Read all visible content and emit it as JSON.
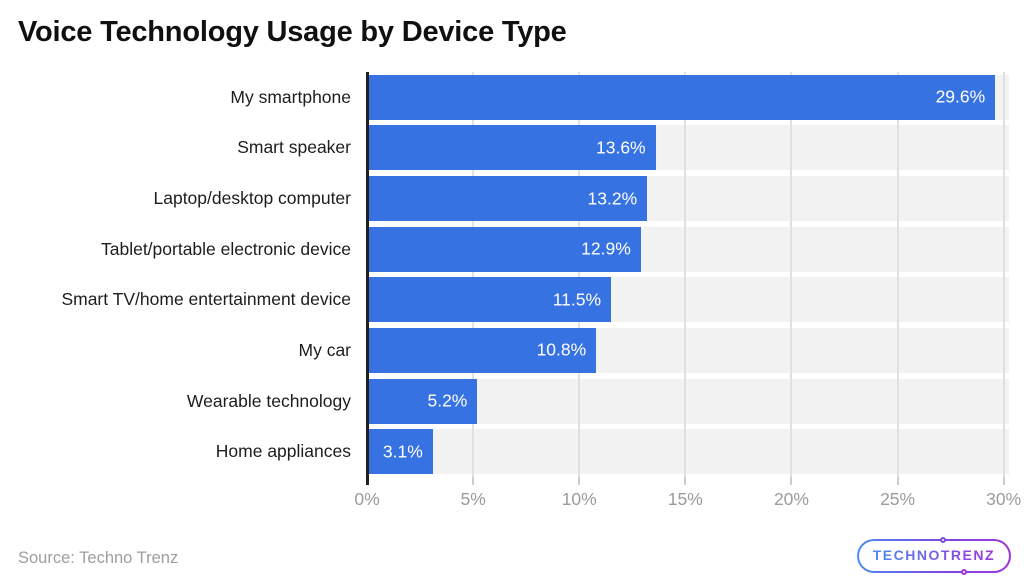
{
  "chart_data": {
    "type": "bar",
    "orientation": "horizontal",
    "title": "Voice Technology Usage by Device Type",
    "categories": [
      "My smartphone",
      "Smart speaker",
      "Laptop/desktop computer",
      "Tablet/portable electronic device",
      "Smart TV/home entertainment device",
      "My car",
      "Wearable technology",
      "Home appliances"
    ],
    "values": [
      29.6,
      13.6,
      13.2,
      12.9,
      11.5,
      10.8,
      5.2,
      3.1
    ],
    "value_labels": [
      "29.6%",
      "13.6%",
      "13.2%",
      "12.9%",
      "11.5%",
      "10.8%",
      "5.2%",
      "3.1%"
    ],
    "xlabel": "",
    "ylabel": "",
    "xlim": [
      0,
      30.25
    ],
    "tick_values": [
      0,
      5,
      10,
      15,
      20,
      25,
      30
    ],
    "tick_labels": [
      "0%",
      "5%",
      "10%",
      "15%",
      "20%",
      "25%",
      "30%"
    ],
    "grid": "vertical",
    "legend": "none",
    "bar_color": "#3672e2",
    "track_color": "#f2f2f2",
    "gridline_color": "#e0e0e0",
    "axis_line_color": "#202020",
    "value_label_color": "#ffffff",
    "tick_label_color": "#9b9b9b"
  },
  "footer": {
    "source_text": "Source: Techno Trenz",
    "logo_text": "TECHNOTRENZ"
  }
}
